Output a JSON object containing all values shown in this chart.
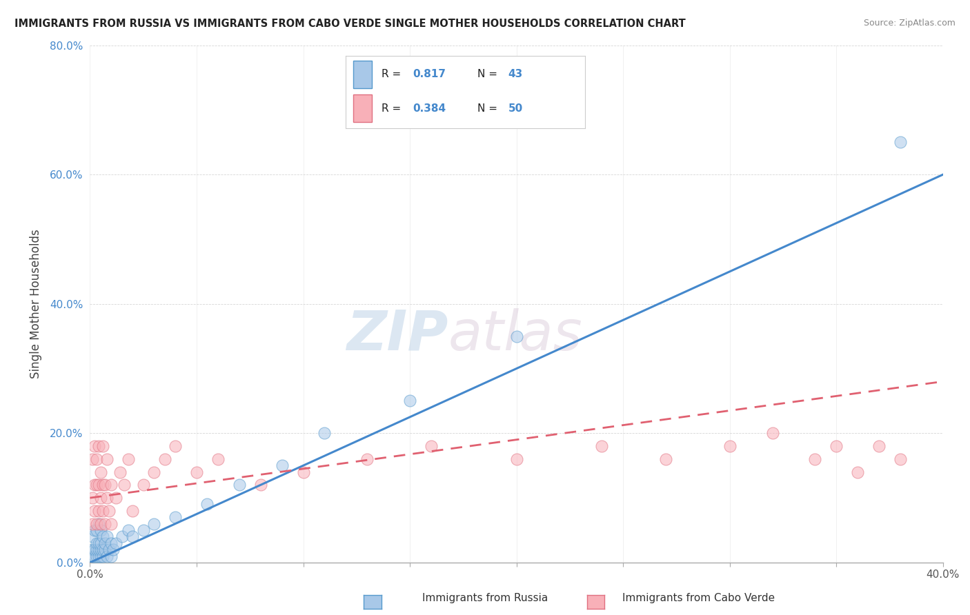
{
  "title": "IMMIGRANTS FROM RUSSIA VS IMMIGRANTS FROM CABO VERDE SINGLE MOTHER HOUSEHOLDS CORRELATION CHART",
  "source": "Source: ZipAtlas.com",
  "ylabel": "Single Mother Households",
  "legend_russia": "Immigrants from Russia",
  "legend_caboverde": "Immigrants from Cabo Verde",
  "r_russia": 0.817,
  "n_russia": 43,
  "r_caboverde": 0.384,
  "n_caboverde": 50,
  "xlim": [
    0.0,
    0.4
  ],
  "ylim": [
    0.0,
    0.8
  ],
  "yticks": [
    0.0,
    0.2,
    0.4,
    0.6,
    0.8
  ],
  "color_russia_fill": "#a8c8e8",
  "color_russia_edge": "#5599cc",
  "color_caboverde_fill": "#f8b0b8",
  "color_caboverde_edge": "#e07080",
  "color_russia_line": "#4488cc",
  "color_caboverde_line": "#e06070",
  "watermark_zip": "ZIP",
  "watermark_atlas": "atlas",
  "russia_x": [
    0.001,
    0.001,
    0.001,
    0.002,
    0.002,
    0.002,
    0.003,
    0.003,
    0.003,
    0.003,
    0.004,
    0.004,
    0.004,
    0.004,
    0.005,
    0.005,
    0.005,
    0.005,
    0.006,
    0.006,
    0.006,
    0.007,
    0.007,
    0.008,
    0.008,
    0.009,
    0.01,
    0.01,
    0.011,
    0.012,
    0.015,
    0.018,
    0.02,
    0.025,
    0.03,
    0.04,
    0.055,
    0.07,
    0.09,
    0.11,
    0.15,
    0.2,
    0.38
  ],
  "russia_y": [
    0.01,
    0.02,
    0.04,
    0.01,
    0.02,
    0.05,
    0.01,
    0.02,
    0.03,
    0.05,
    0.01,
    0.02,
    0.03,
    0.06,
    0.01,
    0.02,
    0.03,
    0.05,
    0.01,
    0.02,
    0.04,
    0.02,
    0.03,
    0.01,
    0.04,
    0.02,
    0.01,
    0.03,
    0.02,
    0.03,
    0.04,
    0.05,
    0.04,
    0.05,
    0.06,
    0.07,
    0.09,
    0.12,
    0.15,
    0.2,
    0.25,
    0.35,
    0.65
  ],
  "caboverde_x": [
    0.001,
    0.001,
    0.001,
    0.002,
    0.002,
    0.002,
    0.003,
    0.003,
    0.003,
    0.004,
    0.004,
    0.004,
    0.005,
    0.005,
    0.005,
    0.006,
    0.006,
    0.006,
    0.007,
    0.007,
    0.008,
    0.008,
    0.009,
    0.01,
    0.01,
    0.012,
    0.014,
    0.016,
    0.018,
    0.02,
    0.025,
    0.03,
    0.035,
    0.04,
    0.05,
    0.06,
    0.08,
    0.1,
    0.13,
    0.16,
    0.2,
    0.24,
    0.27,
    0.3,
    0.32,
    0.34,
    0.35,
    0.36,
    0.37,
    0.38
  ],
  "caboverde_y": [
    0.06,
    0.1,
    0.16,
    0.08,
    0.12,
    0.18,
    0.06,
    0.12,
    0.16,
    0.08,
    0.12,
    0.18,
    0.06,
    0.1,
    0.14,
    0.08,
    0.12,
    0.18,
    0.06,
    0.12,
    0.1,
    0.16,
    0.08,
    0.06,
    0.12,
    0.1,
    0.14,
    0.12,
    0.16,
    0.08,
    0.12,
    0.14,
    0.16,
    0.18,
    0.14,
    0.16,
    0.12,
    0.14,
    0.16,
    0.18,
    0.16,
    0.18,
    0.16,
    0.18,
    0.2,
    0.16,
    0.18,
    0.14,
    0.18,
    0.16
  ],
  "russia_line_x": [
    0.0,
    0.4
  ],
  "russia_line_y": [
    0.0,
    0.6
  ],
  "caboverde_line_x": [
    0.0,
    0.4
  ],
  "caboverde_line_y": [
    0.1,
    0.28
  ]
}
